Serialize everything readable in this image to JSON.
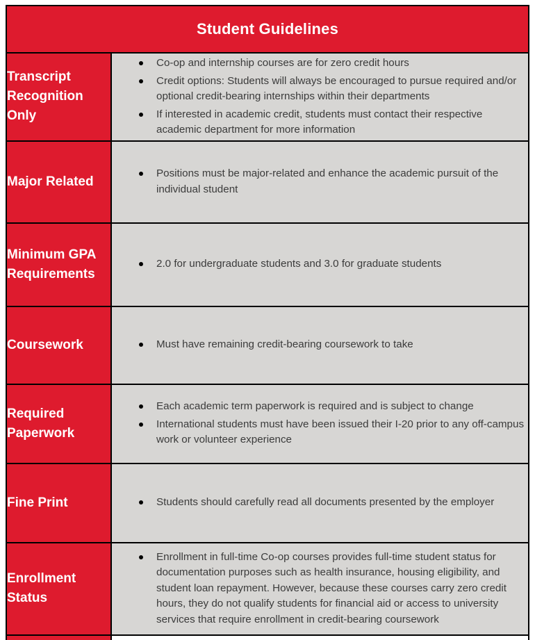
{
  "table": {
    "title": "Student Guidelines",
    "colors": {
      "header_red": "#de1b2e",
      "cell_gray": "#d7d6d4",
      "border_black": "#000000",
      "label_text": "#ffffff",
      "body_text": "#3b3b3b",
      "page_background": "#ffffff"
    },
    "rows": [
      {
        "label": "Transcript Recognition Only",
        "bullets": [
          "Co-op and internship courses are for zero credit hours",
          "Credit options: Students will always be encouraged to pursue required and/or optional credit-bearing internships within their departments",
          "If interested in academic credit, students must contact their respective academic department for more information"
        ]
      },
      {
        "label": "Major Related",
        "bullets": [
          "Positions must be major-related and enhance the academic pursuit of the individual student"
        ]
      },
      {
        "label": "Minimum GPA Requirements",
        "bullets": [
          "2.0 for undergraduate students and 3.0 for graduate students"
        ]
      },
      {
        "label": "Coursework",
        "bullets": [
          "Must have remaining credit-bearing coursework to take"
        ]
      },
      {
        "label": "Required Paperwork",
        "bullets": [
          "Each academic term paperwork is required and is subject to change",
          "International students must have been issued their I-20 prior to any off-campus work or volunteer experience"
        ]
      },
      {
        "label": "Fine Print",
        "bullets": [
          "Students should carefully read all documents presented by the employer"
        ]
      },
      {
        "label": "Enrollment Status",
        "bullets": [
          "Enrollment in full-time Co-op courses provides full-time student status for documentation purposes such as health insurance, housing eligibility, and student loan repayment. However, because these courses carry zero credit hours, they do not qualify students for financial aid or access to university services that require enrollment in credit-bearing coursework"
        ]
      }
    ]
  }
}
